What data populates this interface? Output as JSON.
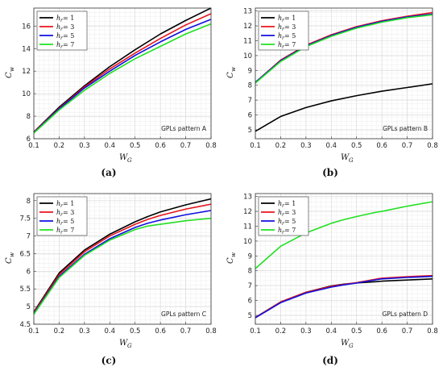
{
  "chart_data": [
    {
      "type": "line",
      "caption": "(a)",
      "annotation": "GPLs pattern A",
      "xlabel_main": "W",
      "xlabel_sub": "G",
      "ylabel_main": "C",
      "ylabel_sub": "w",
      "xlim": [
        0.1,
        0.8
      ],
      "ylim": [
        6,
        17.6
      ],
      "xticks": [
        "0.1",
        "0.2",
        "0.3",
        "0.4",
        "0.5",
        "0.6",
        "0.7",
        "0.8"
      ],
      "yticks": [
        "6",
        "8",
        "10",
        "12",
        "14",
        "16"
      ],
      "ytick_values": [
        6,
        8,
        10,
        12,
        14,
        16
      ],
      "legend_position": "top-left",
      "x": [
        0.1,
        0.2,
        0.3,
        0.4,
        0.5,
        0.6,
        0.7,
        0.8
      ],
      "series": [
        {
          "name_main": "h",
          "name_sub": "r",
          "name_eq": " = 1",
          "color": "#000000",
          "values": [
            6.6,
            8.8,
            10.7,
            12.4,
            13.9,
            15.3,
            16.5,
            17.6
          ]
        },
        {
          "name_main": "h",
          "name_sub": "r",
          "name_eq": " = 3",
          "color": "#e8141b",
          "values": [
            6.6,
            8.7,
            10.6,
            12.2,
            13.6,
            14.9,
            16.1,
            17.1
          ]
        },
        {
          "name_main": "h",
          "name_sub": "r",
          "name_eq": " = 5",
          "color": "#1010e0",
          "values": [
            6.55,
            8.65,
            10.5,
            12.0,
            13.4,
            14.6,
            15.7,
            16.6
          ]
        },
        {
          "name_main": "h",
          "name_sub": "r",
          "name_eq": " = 7",
          "color": "#22e022",
          "values": [
            6.5,
            8.55,
            10.3,
            11.8,
            13.1,
            14.2,
            15.3,
            16.2
          ]
        }
      ]
    },
    {
      "type": "line",
      "caption": "(b)",
      "annotation": "GPLs pattern B",
      "xlabel_main": "W",
      "xlabel_sub": "G",
      "ylabel_main": "C",
      "ylabel_sub": "w",
      "xlim": [
        0.1,
        0.8
      ],
      "ylim": [
        4.4,
        13.2
      ],
      "xticks": [
        "0.1",
        "0.2",
        "0.3",
        "0.4",
        "0.5",
        "0.6",
        "0.7",
        "0.8"
      ],
      "yticks": [
        "5",
        "6",
        "7",
        "8",
        "9",
        "10",
        "11",
        "12",
        "13"
      ],
      "ytick_values": [
        5,
        6,
        7,
        8,
        9,
        10,
        11,
        12,
        13
      ],
      "legend_position": "top-left",
      "x": [
        0.1,
        0.2,
        0.3,
        0.4,
        0.5,
        0.6,
        0.7,
        0.8
      ],
      "series": [
        {
          "name_main": "h",
          "name_sub": "r",
          "name_eq": " = 1",
          "color": "#000000",
          "values": [
            4.9,
            5.9,
            6.5,
            6.95,
            7.3,
            7.6,
            7.85,
            8.1
          ]
        },
        {
          "name_main": "h",
          "name_sub": "r",
          "name_eq": " = 3",
          "color": "#e8141b",
          "values": [
            8.2,
            9.7,
            10.7,
            11.4,
            11.95,
            12.35,
            12.65,
            12.9
          ]
        },
        {
          "name_main": "h",
          "name_sub": "r",
          "name_eq": " = 5",
          "color": "#1010e0",
          "values": [
            8.2,
            9.65,
            10.65,
            11.35,
            11.9,
            12.3,
            12.6,
            12.8
          ]
        },
        {
          "name_main": "h",
          "name_sub": "r",
          "name_eq": " = 7",
          "color": "#22e022",
          "values": [
            8.15,
            9.6,
            10.6,
            11.3,
            11.85,
            12.25,
            12.55,
            12.75
          ]
        }
      ]
    },
    {
      "type": "line",
      "caption": "(c)",
      "annotation": "GPLs pattern C",
      "xlabel_main": "W",
      "xlabel_sub": "G",
      "ylabel_main": "C",
      "ylabel_sub": "w",
      "xlim": [
        0.1,
        0.8
      ],
      "ylim": [
        4.5,
        8.2
      ],
      "xticks": [
        "0.1",
        "0.2",
        "0.3",
        "0.4",
        "0.5",
        "0.6",
        "0.7",
        "0.8"
      ],
      "yticks": [
        "4.5",
        "5",
        "5.5",
        "6",
        "6.5",
        "7",
        "7.5",
        "8"
      ],
      "ytick_values": [
        4.5,
        5,
        5.5,
        6,
        6.5,
        7,
        7.5,
        8
      ],
      "legend_position": "top-left",
      "x": [
        0.1,
        0.2,
        0.3,
        0.4,
        0.5,
        0.55,
        0.6,
        0.7,
        0.8
      ],
      "series": [
        {
          "name_main": "h",
          "name_sub": "r",
          "name_eq": " = 1",
          "color": "#000000",
          "values": [
            4.85,
            5.95,
            6.6,
            7.05,
            7.4,
            7.55,
            7.68,
            7.88,
            8.05
          ]
        },
        {
          "name_main": "h",
          "name_sub": "r",
          "name_eq": " = 3",
          "color": "#e8141b",
          "values": [
            4.83,
            5.9,
            6.55,
            7.0,
            7.33,
            7.47,
            7.58,
            7.76,
            7.9
          ]
        },
        {
          "name_main": "h",
          "name_sub": "r",
          "name_eq": " = 5",
          "color": "#1010e0",
          "values": [
            4.8,
            5.85,
            6.48,
            6.92,
            7.24,
            7.36,
            7.45,
            7.6,
            7.72
          ]
        },
        {
          "name_main": "h",
          "name_sub": "r",
          "name_eq": " = 7",
          "color": "#22e022",
          "values": [
            4.78,
            5.82,
            6.45,
            6.88,
            7.18,
            7.28,
            7.33,
            7.43,
            7.5
          ]
        }
      ]
    },
    {
      "type": "line",
      "caption": "(d)",
      "annotation": "GPLs pattern D",
      "xlabel_main": "W",
      "xlabel_sub": "G",
      "ylabel_main": "C",
      "ylabel_sub": "w",
      "xlim": [
        0.1,
        0.8
      ],
      "ylim": [
        4.4,
        13.2
      ],
      "xticks": [
        "0.1",
        "0.2",
        "0.3",
        "0.4",
        "0.5",
        "0.6",
        "0.7",
        "0.8"
      ],
      "yticks": [
        "5",
        "6",
        "7",
        "8",
        "9",
        "10",
        "11",
        "12",
        "13"
      ],
      "ytick_values": [
        5,
        6,
        7,
        8,
        9,
        10,
        11,
        12,
        13
      ],
      "legend_position": "top-left",
      "x": [
        0.1,
        0.2,
        0.3,
        0.4,
        0.45,
        0.5,
        0.58,
        0.6,
        0.7,
        0.8
      ],
      "series": [
        {
          "name_main": "h",
          "name_sub": "r",
          "name_eq": " = 1",
          "color": "#000000",
          "values": [
            4.85,
            5.9,
            6.55,
            6.98,
            7.1,
            7.18,
            7.27,
            7.3,
            7.38,
            7.45
          ]
        },
        {
          "name_main": "h",
          "name_sub": "r",
          "name_eq": " = 3",
          "color": "#e8141b",
          "values": [
            4.85,
            5.9,
            6.55,
            6.95,
            7.08,
            7.2,
            7.45,
            7.5,
            7.6,
            7.68
          ]
        },
        {
          "name_main": "h",
          "name_sub": "r",
          "name_eq": " = 5",
          "color": "#1010e0",
          "values": [
            4.83,
            5.85,
            6.5,
            6.9,
            7.05,
            7.17,
            7.4,
            7.45,
            7.55,
            7.62
          ]
        },
        {
          "name_main": "h",
          "name_sub": "r",
          "name_eq": " = 7",
          "color": "#22e022",
          "values": [
            8.15,
            9.65,
            10.55,
            11.2,
            11.45,
            11.65,
            11.95,
            12.0,
            12.35,
            12.65
          ]
        }
      ]
    }
  ]
}
